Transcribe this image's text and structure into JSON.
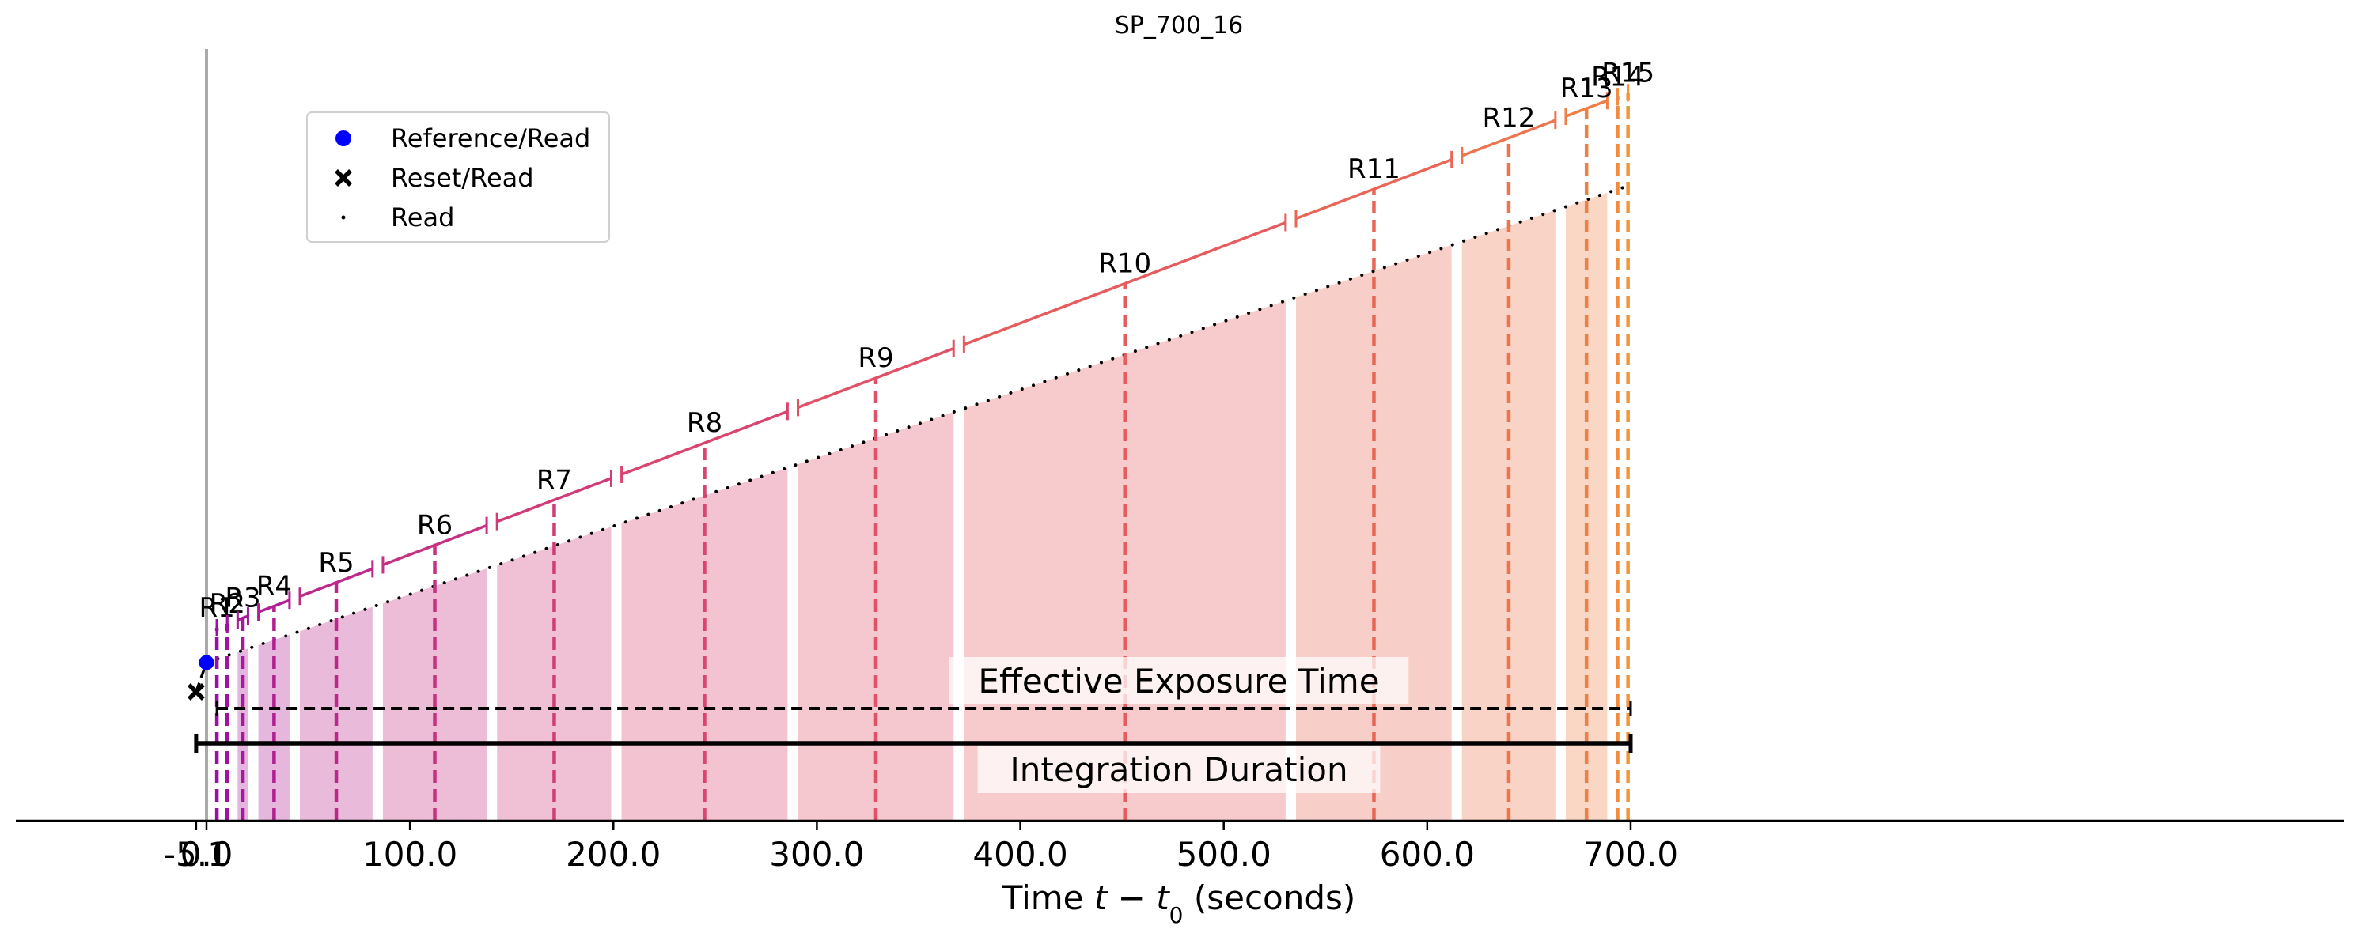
{
  "chart_data": {
    "type": "timeline",
    "title": "SP_700_16",
    "xlabel_main": "Time ",
    "xlabel_math": "t − t",
    "xlabel_sub": "0",
    "xlabel_end": " (seconds)",
    "xticks": [
      {
        "value": -5.1,
        "label": "-5.1"
      },
      {
        "value": 0,
        "label": "0.0"
      },
      {
        "value": 100,
        "label": "100.0"
      },
      {
        "value": 200,
        "label": "200.0"
      },
      {
        "value": 300,
        "label": "300.0"
      },
      {
        "value": 400,
        "label": "400.0"
      },
      {
        "value": 500,
        "label": "500.0"
      },
      {
        "value": 600,
        "label": "600.0"
      },
      {
        "value": 700,
        "label": "700.0"
      }
    ],
    "xlim": [
      -70,
      733
    ],
    "reset_time": -5.1,
    "reference_time": 0,
    "end_time": 700,
    "legend": {
      "position": "upper-left",
      "entries": [
        {
          "marker": "circle",
          "label": "Reference/Read"
        },
        {
          "marker": "x",
          "label": "Reset/Read"
        },
        {
          "marker": "dot",
          "label": "Read"
        }
      ]
    },
    "resultants": [
      {
        "label": "R1",
        "start": 5.1,
        "end": 5.1,
        "mean": 5.1,
        "color": "#9a0fa7"
      },
      {
        "label": "R2",
        "start": 10.2,
        "end": 10.2,
        "mean": 10.2,
        "color": "#a1139f"
      },
      {
        "label": "R3",
        "start": 15.3,
        "end": 20.4,
        "mean": 17.9,
        "color": "#a9179a"
      },
      {
        "label": "R4",
        "start": 25.5,
        "end": 40.8,
        "mean": 33.2,
        "color": "#b11f92"
      },
      {
        "label": "R5",
        "start": 45.9,
        "end": 81.6,
        "mean": 63.8,
        "color": "#bb2889"
      },
      {
        "label": "R6",
        "start": 86.7,
        "end": 137.7,
        "mean": 112.2,
        "color": "#c63181"
      },
      {
        "label": "R7",
        "start": 142.8,
        "end": 198.9,
        "mean": 170.9,
        "color": "#d03c78"
      },
      {
        "label": "R8",
        "start": 204.0,
        "end": 285.6,
        "mean": 244.8,
        "color": "#d9456f"
      },
      {
        "label": "R9",
        "start": 290.7,
        "end": 367.2,
        "mean": 329.0,
        "color": "#e05066"
      },
      {
        "label": "R10",
        "start": 372.3,
        "end": 530.4,
        "mean": 451.4,
        "color": "#e55b5e"
      },
      {
        "label": "R11",
        "start": 535.5,
        "end": 612.0,
        "mean": 573.8,
        "color": "#e96656"
      },
      {
        "label": "R12",
        "start": 617.1,
        "end": 663.0,
        "mean": 640.1,
        "color": "#ec744e"
      },
      {
        "label": "R13",
        "start": 668.1,
        "end": 688.5,
        "mean": 678.3,
        "color": "#ee8046"
      },
      {
        "label": "R14",
        "start": 693.6,
        "end": 693.6,
        "mean": 693.6,
        "color": "#f08b40"
      },
      {
        "label": "R15",
        "start": 698.7,
        "end": 698.7,
        "mean": 698.7,
        "color": "#f2963a"
      }
    ],
    "effective_exposure": {
      "label": "Effective Exposure Time",
      "start": 5.1,
      "end": 700
    },
    "integration_duration": {
      "label": "Integration Duration",
      "start": -5.1,
      "end": 700
    }
  }
}
